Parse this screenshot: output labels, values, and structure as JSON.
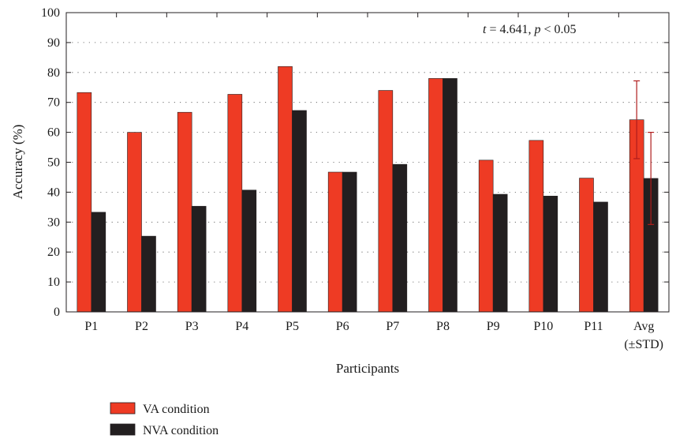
{
  "chart_data": {
    "type": "bar",
    "categories": [
      "P1",
      "P2",
      "P3",
      "P4",
      "P5",
      "P6",
      "P7",
      "P8",
      "P9",
      "P10",
      "P11",
      "Avg"
    ],
    "category_sublabels": [
      "",
      "",
      "",
      "",
      "",
      "",
      "",
      "",
      "",
      "",
      "",
      "(±STD)"
    ],
    "series": [
      {
        "name": "VA condition",
        "color": "#ee3b24",
        "values": [
          73.3,
          60.0,
          66.7,
          72.7,
          82.0,
          46.7,
          74.0,
          78.0,
          50.7,
          57.3,
          44.7,
          64.2
        ],
        "error": [
          null,
          null,
          null,
          null,
          null,
          null,
          null,
          null,
          null,
          null,
          null,
          13.0
        ]
      },
      {
        "name": "NVA condition",
        "color": "#231f20",
        "values": [
          33.3,
          25.3,
          35.3,
          40.7,
          67.3,
          46.7,
          49.3,
          78.0,
          39.3,
          38.7,
          36.7,
          44.6
        ],
        "error": [
          null,
          null,
          null,
          null,
          null,
          null,
          null,
          null,
          null,
          null,
          null,
          15.4
        ]
      }
    ],
    "error_bar_color": "#b01c1c",
    "xlabel": "Participants",
    "ylabel": "Accuracy (%)",
    "ylim": [
      0,
      100
    ],
    "yticks": [
      0,
      10,
      20,
      30,
      40,
      50,
      60,
      70,
      80,
      90,
      100
    ],
    "grid": "dotted horizontal",
    "legend_position": "bottom-left",
    "annotation": {
      "t_symbol": "t",
      "t_rest": " = 4.641, ",
      "p_symbol": "p",
      "p_rest": " < 0.05"
    }
  }
}
